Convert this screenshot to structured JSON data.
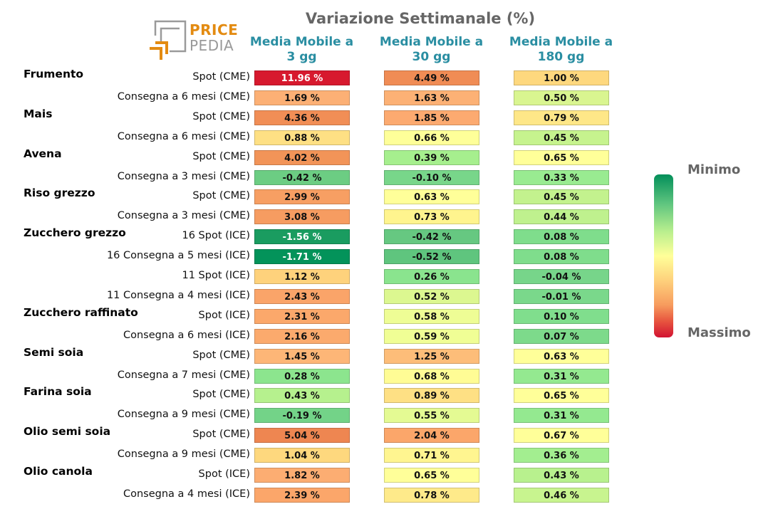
{
  "chart_data": {
    "type": "table",
    "title": "Variazione Settimanale (%)",
    "logo": {
      "line1": "PRICE",
      "line2": "PEDIA"
    },
    "columns": [
      "Media Mobile a\n3 gg",
      "Media Mobile a\n30 gg",
      "Media Mobile a\n180 gg"
    ],
    "legend": {
      "min_label": "Minimo",
      "max_label": "Massimo"
    },
    "rows": [
      {
        "commodity": "Frumento",
        "contract": "Spot (CME)",
        "values": [
          "11.96 %",
          "4.49 %",
          "1.00 %"
        ],
        "colors": [
          "#d7192e",
          "#f08c55",
          "#fed87e"
        ]
      },
      {
        "commodity": "",
        "contract": "Consegna a 6 mesi (CME)",
        "values": [
          "1.69 %",
          "1.63 %",
          "0.50 %"
        ],
        "colors": [
          "#fcb075",
          "#fcb175",
          "#d9f590"
        ]
      },
      {
        "commodity": "Mais",
        "contract": "Spot (CME)",
        "values": [
          "4.36 %",
          "1.85 %",
          "0.79 %"
        ],
        "colors": [
          "#f18e56",
          "#fcaa70",
          "#fee788"
        ]
      },
      {
        "commodity": "",
        "contract": "Consegna a 6 mesi (CME)",
        "values": [
          "0.88 %",
          "0.66 %",
          "0.45 %"
        ],
        "colors": [
          "#fee084",
          "#feff99",
          "#c6f38e"
        ]
      },
      {
        "commodity": "Avena",
        "contract": "Spot (CME)",
        "values": [
          "4.02 %",
          "0.39 %",
          "0.65 %"
        ],
        "colors": [
          "#f29458",
          "#a6ef8e",
          "#ffff99"
        ]
      },
      {
        "commodity": "",
        "contract": "Consegna a 3 mesi (CME)",
        "values": [
          "-0.42 %",
          "-0.10 %",
          "0.33 %"
        ],
        "colors": [
          "#6ccd83",
          "#78d68a",
          "#99eb91"
        ]
      },
      {
        "commodity": "Riso grezzo",
        "contract": "Spot (CME)",
        "values": [
          "2.99 %",
          "0.63 %",
          "0.45 %"
        ],
        "colors": [
          "#f79f63",
          "#ffff99",
          "#c3f28e"
        ]
      },
      {
        "commodity": "",
        "contract": "Consegna a 3 mesi (CME)",
        "values": [
          "3.08 %",
          "0.73 %",
          "0.44 %"
        ],
        "colors": [
          "#f69c61",
          "#fff48e",
          "#bff18e"
        ]
      },
      {
        "commodity": "Zucchero grezzo",
        "contract": "16 Spot (ICE)",
        "values": [
          "-1.56 %",
          "-0.42 %",
          "0.08 %"
        ],
        "colors": [
          "#1a9c60",
          "#66c881",
          "#7fdd8c"
        ]
      },
      {
        "commodity": "",
        "contract": "16 Consegna a 5 mesi (ICE)",
        "values": [
          "-1.71 %",
          "-0.52 %",
          "0.08 %"
        ],
        "colors": [
          "#03935a",
          "#5fc57e",
          "#7fdd8c"
        ]
      },
      {
        "commodity": "",
        "contract": "11 Spot (ICE)",
        "values": [
          "1.12 %",
          "0.26 %",
          "-0.04 %"
        ],
        "colors": [
          "#fed27c",
          "#8ae48e",
          "#77d58a"
        ]
      },
      {
        "commodity": "",
        "contract": "11 Consegna a 4 mesi (ICE)",
        "values": [
          "2.43 %",
          "0.52 %",
          "-0.01 %"
        ],
        "colors": [
          "#faa469",
          "#dcf790",
          "#7ad88b"
        ]
      },
      {
        "commodity": "Zucchero raffinato",
        "contract": "Spot (ICE)",
        "values": [
          "2.31 %",
          "0.58 %",
          "0.10 %"
        ],
        "colors": [
          "#fba86b",
          "#eefd95",
          "#80de8d"
        ]
      },
      {
        "commodity": "",
        "contract": "Consegna a 6 mesi (ICE)",
        "values": [
          "2.16 %",
          "0.59 %",
          "0.07 %"
        ],
        "colors": [
          "#fbaa6d",
          "#f0fe95",
          "#7dda8b"
        ]
      },
      {
        "commodity": "Semi soia",
        "contract": "Spot (CME)",
        "values": [
          "1.45 %",
          "1.25 %",
          "0.63 %"
        ],
        "colors": [
          "#fdb677",
          "#fdbd79",
          "#ffff99"
        ]
      },
      {
        "commodity": "",
        "contract": "Consegna a 7 mesi (CME)",
        "values": [
          "0.28 %",
          "0.68 %",
          "0.31 %"
        ],
        "colors": [
          "#8ce58e",
          "#fffc95",
          "#94e990"
        ]
      },
      {
        "commodity": "Farina soia",
        "contract": "Spot (CME)",
        "values": [
          "0.43 %",
          "0.89 %",
          "0.65 %"
        ],
        "colors": [
          "#b6f18e",
          "#fee084",
          "#ffff99"
        ]
      },
      {
        "commodity": "",
        "contract": "Consegna a 9 mesi (CME)",
        "values": [
          "-0.19 %",
          "0.55 %",
          "0.31 %"
        ],
        "colors": [
          "#73d388",
          "#e4fa93",
          "#94e990"
        ]
      },
      {
        "commodity": "Olio semi soia",
        "contract": "Spot (CME)",
        "values": [
          "5.04 %",
          "2.04 %",
          "0.67 %"
        ],
        "colors": [
          "#ee8651",
          "#fba66a",
          "#ffff99"
        ]
      },
      {
        "commodity": "",
        "contract": "Consegna a 9 mesi (CME)",
        "values": [
          "1.04 %",
          "0.71 %",
          "0.36 %"
        ],
        "colors": [
          "#fed87e",
          "#fff590",
          "#a3ee90"
        ]
      },
      {
        "commodity": "Olio canola",
        "contract": "Spot (ICE)",
        "values": [
          "1.82 %",
          "0.65 %",
          "0.43 %"
        ],
        "colors": [
          "#fcad72",
          "#ffff99",
          "#b8f18e"
        ]
      },
      {
        "commodity": "",
        "contract": "Consegna a 4 mesi (ICE)",
        "values": [
          "2.39 %",
          "0.78 %",
          "0.46 %"
        ],
        "colors": [
          "#fba66a",
          "#feea8a",
          "#c8f48f"
        ]
      }
    ]
  }
}
